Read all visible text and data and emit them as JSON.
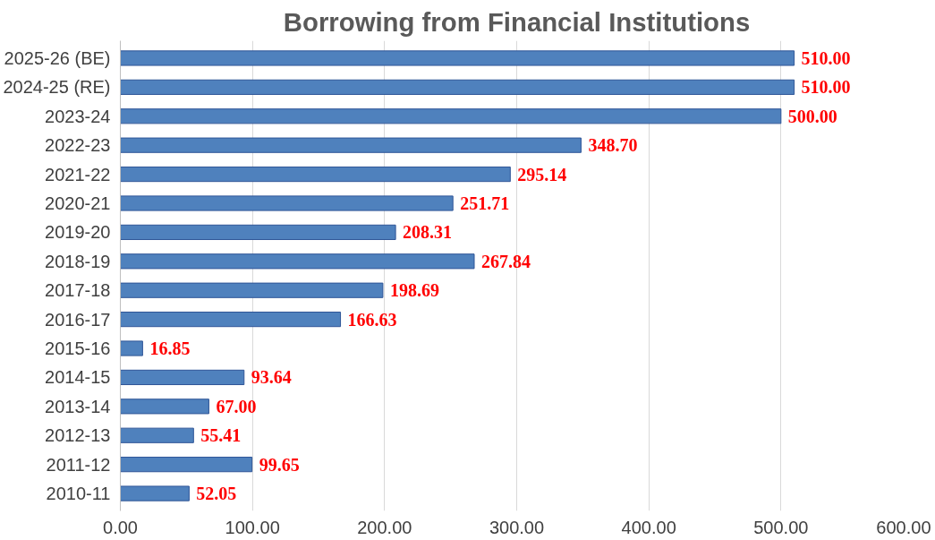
{
  "chart_data": {
    "type": "bar",
    "orientation": "horizontal",
    "title": "Borrowing from Financial Institutions",
    "categories": [
      "2025-26 (BE)",
      "2024-25 (RE)",
      "2023-24",
      "2022-23",
      "2021-22",
      "2020-21",
      "2019-20",
      "2018-19",
      "2017-18",
      "2016-17",
      "2015-16",
      "2014-15",
      "2013-14",
      "2012-13",
      "2011-12",
      "2010-11"
    ],
    "values": [
      510.0,
      510.0,
      500.0,
      348.7,
      295.14,
      251.71,
      208.31,
      267.84,
      198.69,
      166.63,
      16.85,
      93.64,
      67.0,
      55.41,
      99.65,
      52.05
    ],
    "value_labels": [
      "510.00",
      "510.00",
      "500.00",
      "348.70",
      "295.14",
      "251.71",
      "208.31",
      "267.84",
      "198.69",
      "166.63",
      "16.85",
      "93.64",
      "67.00",
      "55.41",
      "99.65",
      "52.05"
    ],
    "color": "#4f81bd",
    "xlim": [
      0,
      600
    ],
    "xticks": [
      {
        "value": 0,
        "label": "0.00"
      },
      {
        "value": 100,
        "label": "100.00"
      },
      {
        "value": 200,
        "label": "200.00"
      },
      {
        "value": 300,
        "label": "300.00"
      },
      {
        "value": 400,
        "label": "400.00"
      },
      {
        "value": 500,
        "label": "500.00"
      },
      {
        "value": 600,
        "label": "600.00"
      }
    ],
    "grid": "x"
  }
}
